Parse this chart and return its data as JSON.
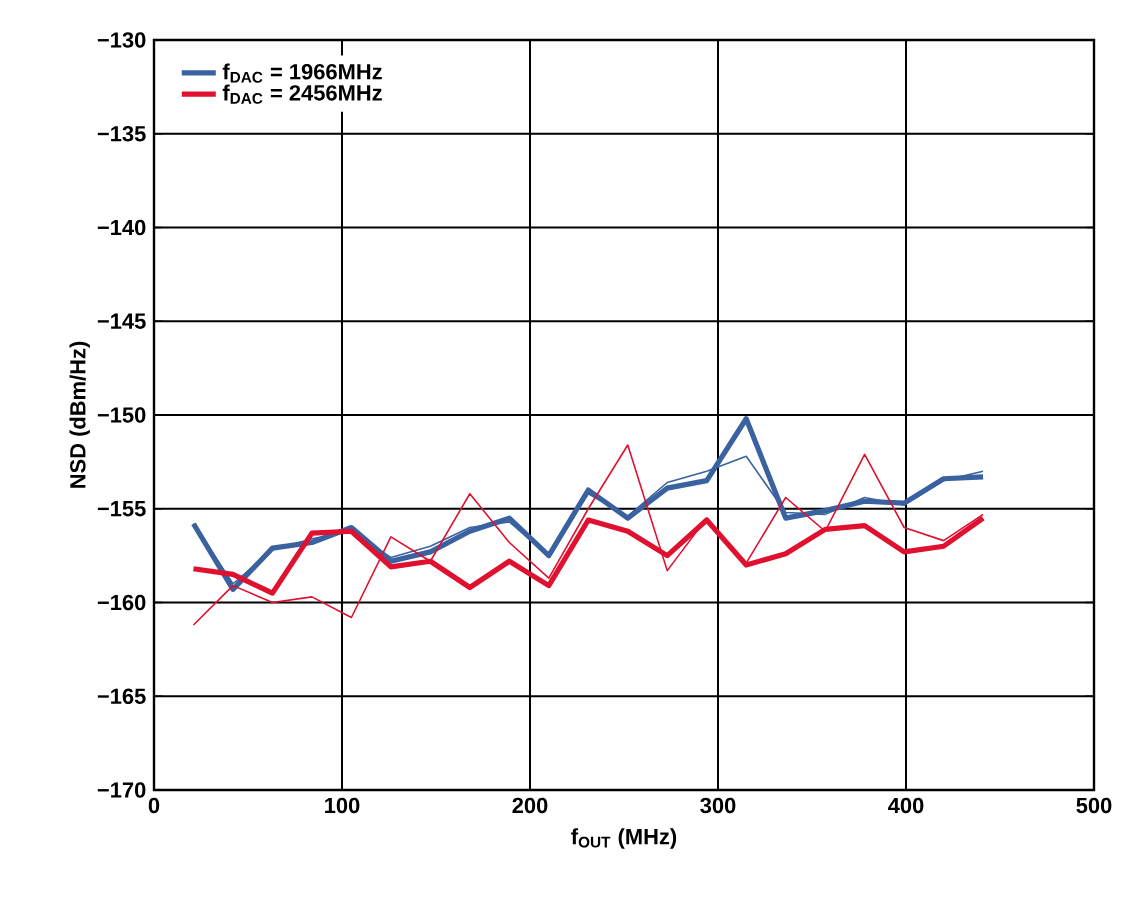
{
  "chart_data": {
    "type": "line",
    "xlabel": "f$_{OUT}$ (MHz)",
    "ylabel": "NSD (dBm/Hz)",
    "x": [
      21,
      42,
      63,
      84,
      105,
      126,
      147,
      168,
      189,
      210,
      231,
      252,
      273,
      294,
      315,
      336,
      357,
      378,
      399,
      420,
      441
    ],
    "series": [
      {
        "name": "f$_{DAC}$ = 1966MHz",
        "color": "#3a62a0",
        "values": [
          -155.8,
          -159.3,
          -157.1,
          -156.8,
          -156.0,
          -157.8,
          -157.3,
          -156.2,
          -155.5,
          -157.5,
          -154.0,
          -155.5,
          -153.9,
          -153.5,
          -150.2,
          -155.5,
          -155.1,
          -154.6,
          -154.7,
          -153.4,
          -153.3
        ]
      },
      {
        "color": "#3a62a0",
        "values": [
          -155.8,
          -159.0,
          -157.2,
          -156.6,
          -156.2,
          -157.6,
          -157.0,
          -156.0,
          -155.7,
          -157.5,
          -154.2,
          -155.4,
          -153.6,
          -153.0,
          -152.2,
          -155.2,
          -155.3,
          -154.4,
          -154.8,
          -153.5,
          -153.0
        ]
      },
      {
        "name": "f$_{DAC}$ = 2456MHz",
        "color": "#e0102f",
        "values": [
          -158.2,
          -158.5,
          -159.5,
          -156.3,
          -156.2,
          -158.1,
          -157.8,
          -159.2,
          -157.8,
          -159.1,
          -155.6,
          -156.2,
          -157.5,
          -155.6,
          -158.0,
          -157.4,
          -156.1,
          -155.9,
          -157.3,
          -157.0,
          -155.5
        ]
      },
      {
        "color": "#e0102f",
        "values": [
          -161.2,
          -159.1,
          -160.0,
          -159.7,
          -160.8,
          -156.5,
          -157.8,
          -154.2,
          -156.8,
          -158.7,
          -155.0,
          -151.6,
          -158.3,
          -155.5,
          -157.9,
          -154.4,
          -156.2,
          -152.1,
          -156.0,
          -156.7,
          -155.3
        ]
      }
    ],
    "xlim": [
      0,
      500
    ],
    "xticks": [
      0,
      100,
      200,
      300,
      400,
      500
    ],
    "ylim": [
      -170,
      -130
    ],
    "yticks": [
      {
        "value": -170,
        "label": "−170"
      },
      {
        "value": -165,
        "label": "−165"
      },
      {
        "value": -160,
        "label": "−160"
      },
      {
        "value": -155,
        "label": "−155"
      },
      {
        "value": -150,
        "label": "−150"
      },
      {
        "value": -145,
        "label": "−145"
      },
      {
        "value": -140,
        "label": "−140"
      },
      {
        "value": -135,
        "label": "−135"
      },
      {
        "value": -130,
        "label": "−130"
      }
    ],
    "grid": true,
    "legend": "top left",
    "marker": "none",
    "line_style": "solid"
  }
}
